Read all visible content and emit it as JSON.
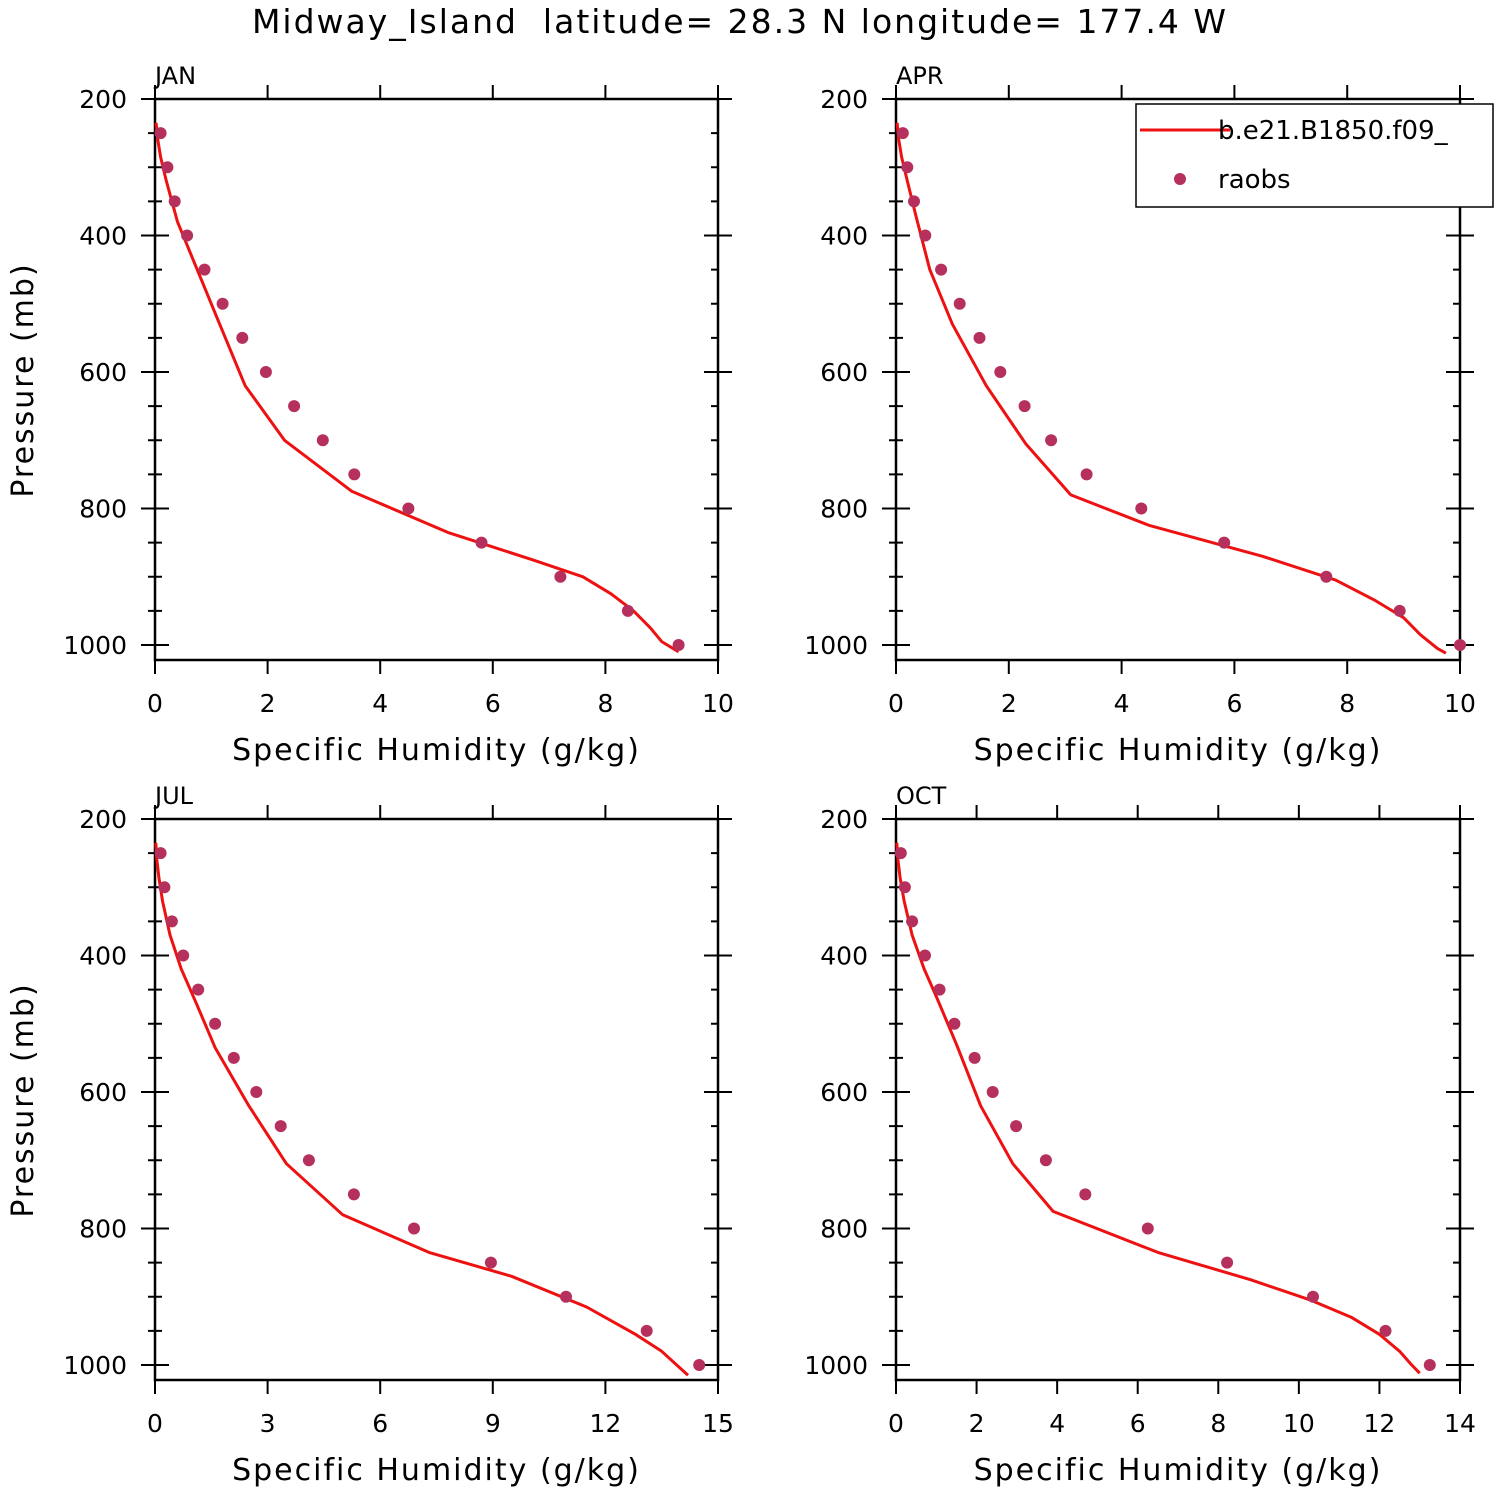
{
  "title": "Midway_Island  latitude= 28.3 N longitude= 177.4 W",
  "colors": {
    "model": "#ee1111",
    "raobs": "#b5305c",
    "axes": "#000000"
  },
  "legend": {
    "placement": "top-right of APR panel",
    "entries": [
      {
        "label": "b.e21.B1850.f09_",
        "style": "line",
        "color": "#ee1111"
      },
      {
        "label": "raobs",
        "style": "marker",
        "color": "#b5305c"
      }
    ]
  },
  "chart_data": [
    {
      "type": "line",
      "panel": "JAN",
      "xlabel": "Specific Humidity (g/kg)",
      "ylabel": "Pressure (mb)",
      "xlim": [
        0,
        10
      ],
      "ylim": [
        200,
        1000
      ],
      "y_inverted": true,
      "xticks": [
        0,
        2,
        4,
        6,
        8,
        10
      ],
      "yticks": [
        200,
        400,
        600,
        800,
        1000
      ],
      "series": [
        {
          "name": "b.e21.B1850.f09_",
          "style": "line",
          "x": [
            0.02,
            0.05,
            0.1,
            0.2,
            0.4,
            0.7,
            1.1,
            1.6,
            2.3,
            3.5,
            5.2,
            6.7,
            7.6,
            8.1,
            8.5,
            8.8,
            9.0,
            9.3
          ],
          "y": [
            235,
            260,
            285,
            320,
            380,
            440,
            520,
            620,
            700,
            775,
            835,
            875,
            900,
            925,
            950,
            975,
            995,
            1010
          ]
        },
        {
          "name": "raobs",
          "style": "marker",
          "x": [
            0.1,
            0.22,
            0.35,
            0.57,
            0.88,
            1.2,
            1.55,
            1.97,
            2.47,
            2.98,
            3.54,
            4.5,
            5.8,
            7.2,
            8.4,
            9.3
          ],
          "y": [
            250,
            300,
            350,
            400,
            450,
            500,
            550,
            600,
            650,
            700,
            750,
            800,
            850,
            900,
            950,
            1000
          ]
        }
      ]
    },
    {
      "type": "line",
      "panel": "APR",
      "xlabel": "Specific Humidity (g/kg)",
      "ylabel": "",
      "xlim": [
        0,
        10
      ],
      "ylim": [
        200,
        1000
      ],
      "y_inverted": true,
      "xticks": [
        0,
        2,
        4,
        6,
        8,
        10
      ],
      "yticks": [
        200,
        400,
        600,
        800,
        1000
      ],
      "series": [
        {
          "name": "b.e21.B1850.f09_",
          "style": "line",
          "x": [
            0.02,
            0.05,
            0.1,
            0.2,
            0.35,
            0.6,
            1.0,
            1.6,
            2.3,
            3.1,
            4.5,
            6.5,
            7.8,
            8.5,
            9.0,
            9.3,
            9.6,
            9.75
          ],
          "y": [
            235,
            260,
            285,
            320,
            370,
            450,
            530,
            620,
            705,
            780,
            825,
            870,
            905,
            935,
            960,
            985,
            1005,
            1012
          ]
        },
        {
          "name": "raobs",
          "style": "marker",
          "x": [
            0.12,
            0.2,
            0.32,
            0.52,
            0.8,
            1.13,
            1.48,
            1.85,
            2.28,
            2.75,
            3.38,
            4.35,
            5.82,
            7.63,
            8.93,
            10.0
          ],
          "y": [
            250,
            300,
            350,
            400,
            450,
            500,
            550,
            600,
            650,
            700,
            750,
            800,
            850,
            900,
            950,
            1000
          ]
        }
      ]
    },
    {
      "type": "line",
      "panel": "JUL",
      "xlabel": "Specific Humidity (g/kg)",
      "ylabel": "Pressure (mb)",
      "xlim": [
        0,
        15
      ],
      "ylim": [
        200,
        1000
      ],
      "y_inverted": true,
      "xticks": [
        0,
        3,
        6,
        9,
        12,
        15
      ],
      "yticks": [
        200,
        400,
        600,
        800,
        1000
      ],
      "series": [
        {
          "name": "b.e21.B1850.f09_",
          "style": "line",
          "x": [
            0.02,
            0.05,
            0.1,
            0.2,
            0.4,
            0.7,
            1.1,
            1.6,
            2.5,
            3.5,
            5.0,
            7.3,
            9.5,
            11.5,
            12.8,
            13.5,
            13.9,
            14.2
          ],
          "y": [
            235,
            260,
            285,
            320,
            370,
            420,
            470,
            535,
            620,
            705,
            780,
            835,
            870,
            915,
            955,
            980,
            1000,
            1015
          ]
        },
        {
          "name": "raobs",
          "style": "marker",
          "x": [
            0.15,
            0.25,
            0.45,
            0.75,
            1.15,
            1.6,
            2.1,
            2.7,
            3.35,
            4.1,
            5.3,
            6.9,
            8.95,
            10.95,
            13.1,
            14.5
          ],
          "y": [
            250,
            300,
            350,
            400,
            450,
            500,
            550,
            600,
            650,
            700,
            750,
            800,
            850,
            900,
            950,
            1000
          ]
        }
      ]
    },
    {
      "type": "line",
      "panel": "OCT",
      "xlabel": "Specific Humidity (g/kg)",
      "ylabel": "",
      "xlim": [
        0,
        14
      ],
      "ylim": [
        200,
        1000
      ],
      "y_inverted": true,
      "xticks": [
        0,
        2,
        4,
        6,
        8,
        10,
        12,
        14
      ],
      "yticks": [
        200,
        400,
        600,
        800,
        1000
      ],
      "series": [
        {
          "name": "b.e21.B1850.f09_",
          "style": "line",
          "x": [
            0.02,
            0.05,
            0.1,
            0.2,
            0.4,
            0.7,
            1.0,
            1.5,
            2.1,
            2.9,
            3.9,
            6.5,
            8.8,
            10.3,
            11.3,
            12.0,
            12.5,
            12.8,
            13.0
          ],
          "y": [
            235,
            260,
            285,
            320,
            370,
            420,
            460,
            530,
            620,
            705,
            775,
            835,
            875,
            905,
            930,
            955,
            980,
            1000,
            1012
          ]
        },
        {
          "name": "raobs",
          "style": "marker",
          "x": [
            0.12,
            0.22,
            0.4,
            0.72,
            1.08,
            1.45,
            1.95,
            2.4,
            2.98,
            3.72,
            4.7,
            6.25,
            8.22,
            10.35,
            12.15,
            13.25
          ],
          "y": [
            250,
            300,
            350,
            400,
            450,
            500,
            550,
            600,
            650,
            700,
            750,
            800,
            850,
            900,
            950,
            1000
          ]
        }
      ]
    }
  ]
}
